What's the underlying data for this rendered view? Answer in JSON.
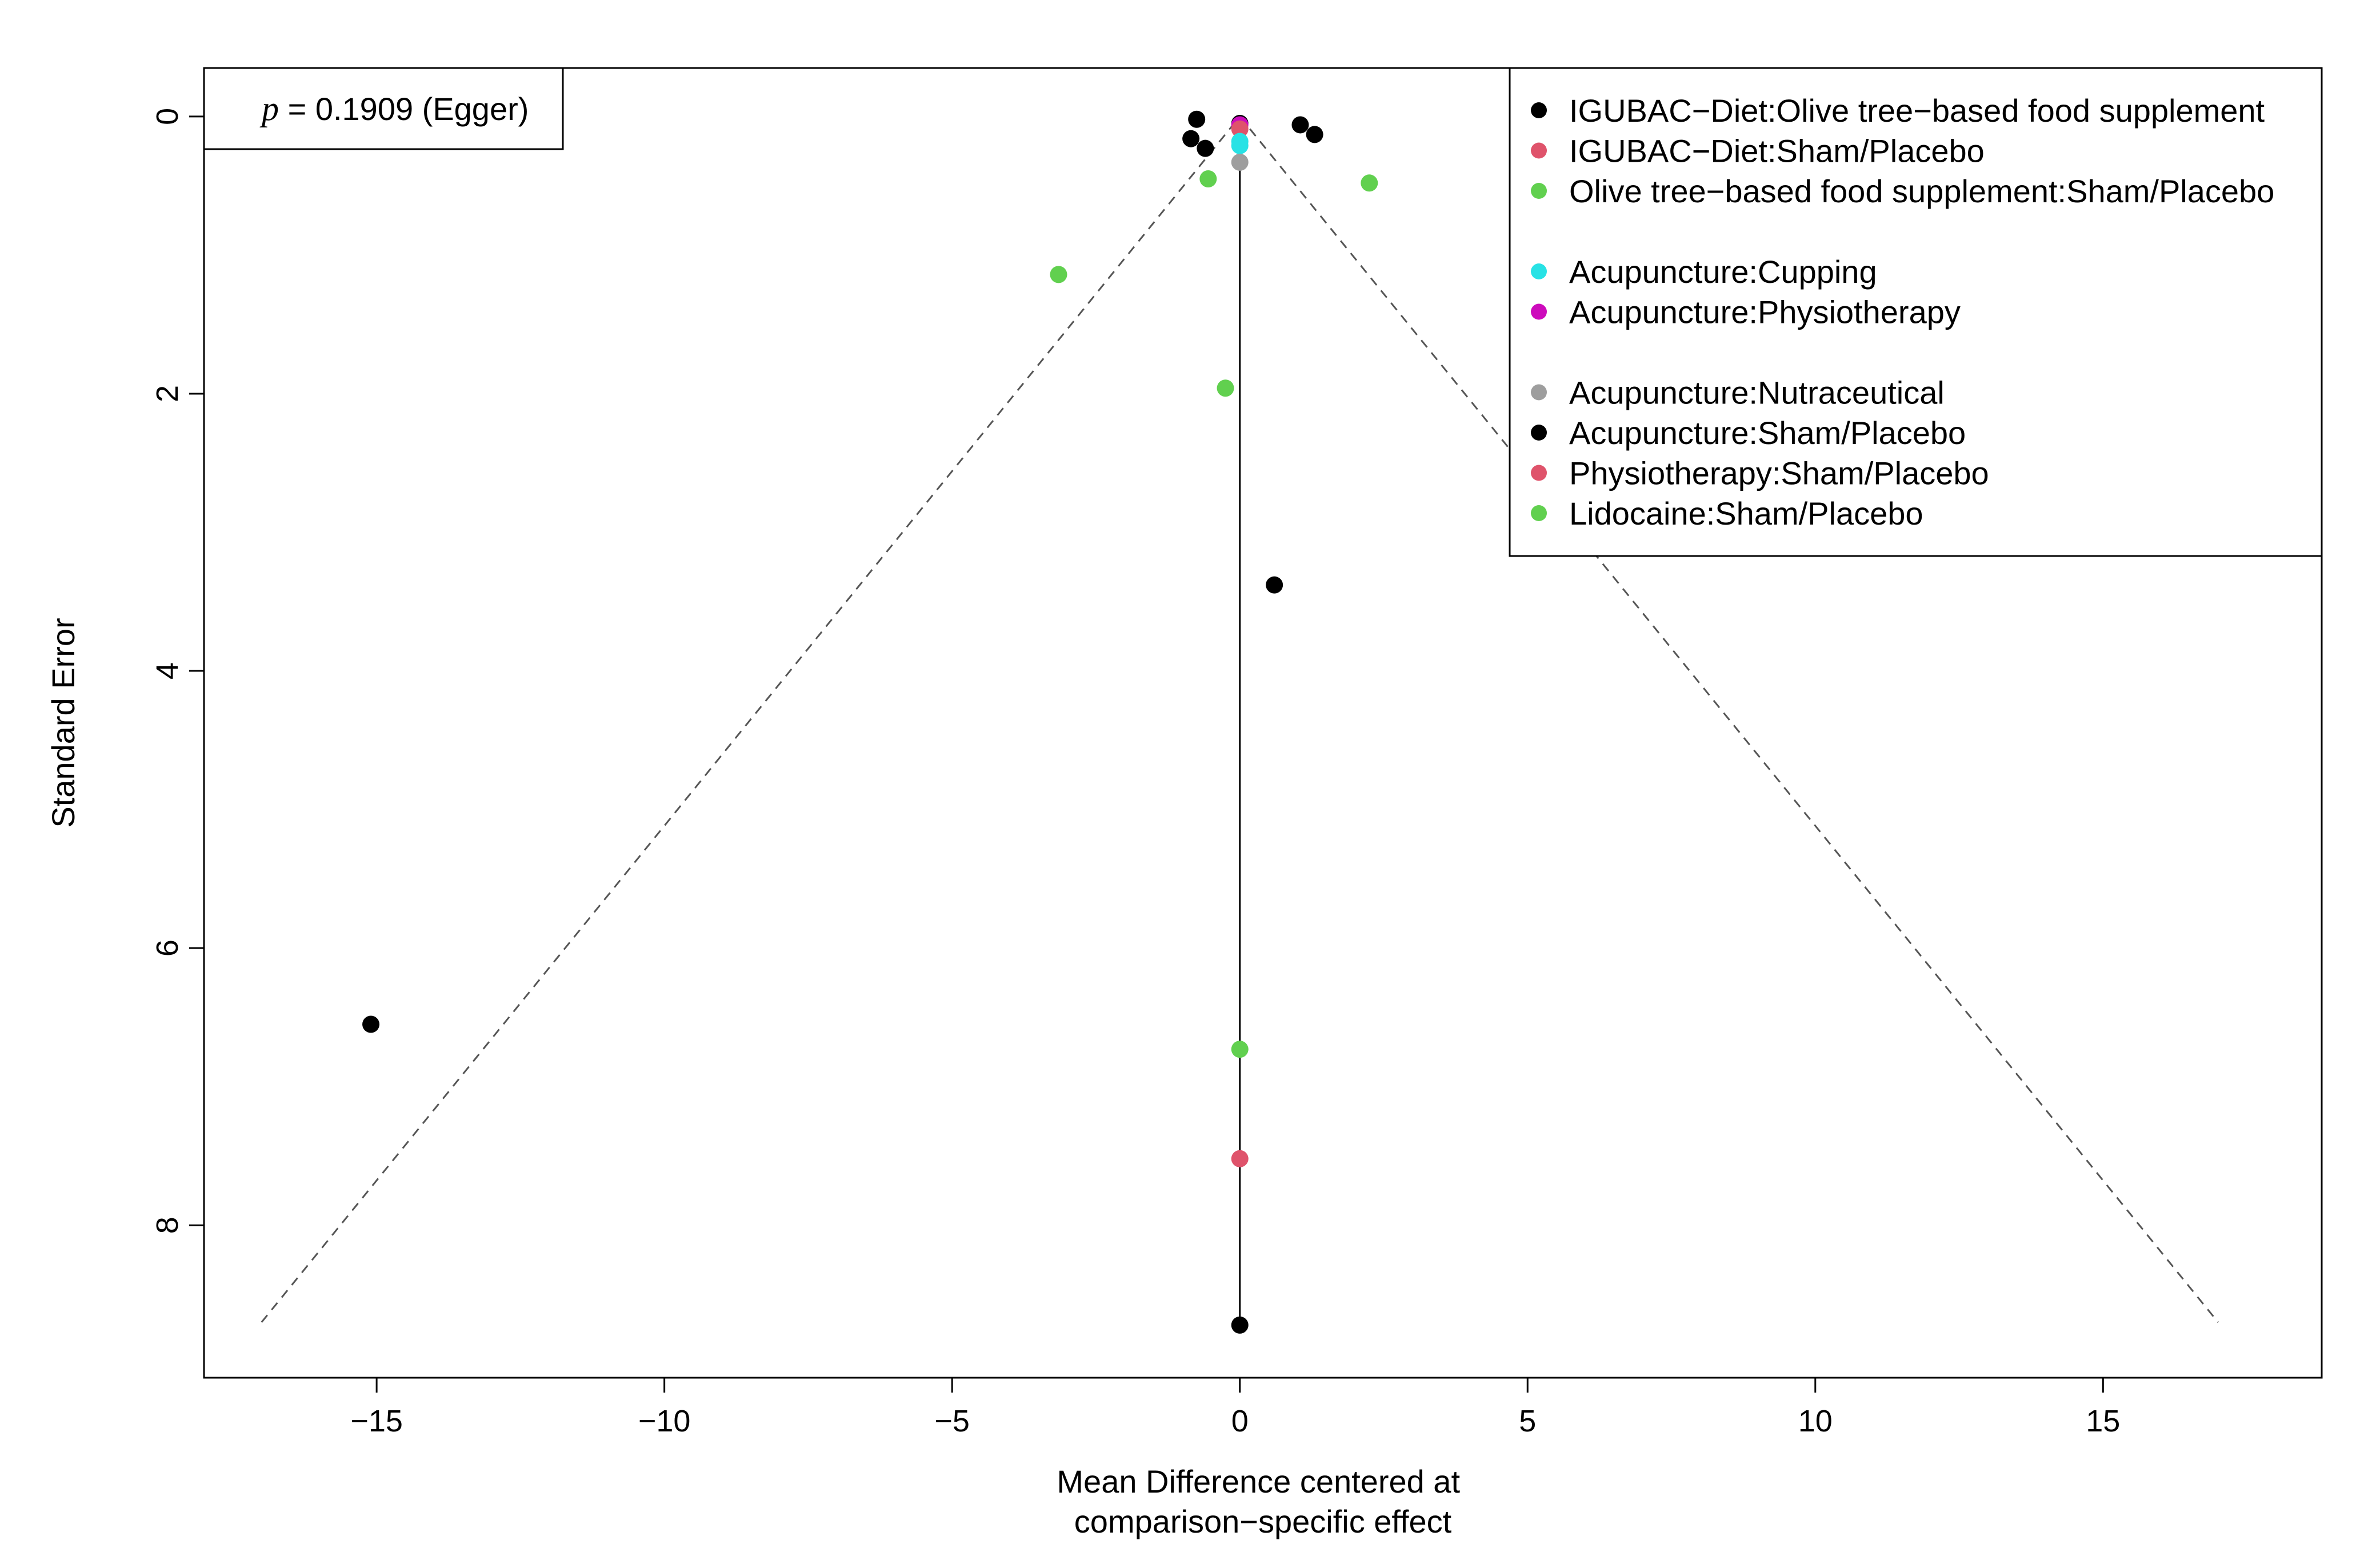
{
  "chart_data": {
    "type": "scatter",
    "xlabel_lines": [
      "Mean Difference centered at",
      "comparison−specific effect"
    ],
    "ylabel": "Standard Error",
    "xlim": [
      -18,
      18.8
    ],
    "ylim": [
      9.1,
      -0.35
    ],
    "y_reversed": true,
    "xticks": [
      -15,
      -10,
      -5,
      0,
      5,
      10,
      15
    ],
    "xtick_labels": [
      "−15",
      "−10",
      "−5",
      "0",
      "5",
      "10",
      "15"
    ],
    "yticks": [
      0,
      2,
      4,
      6,
      8
    ],
    "ytick_labels": [
      "0",
      "2",
      "4",
      "6",
      "8"
    ],
    "funnel": {
      "center": 0,
      "top_se": 0,
      "bottom_se": 8.7,
      "left_x": -17,
      "right_x": 17
    },
    "egger": {
      "p_symbol": "p",
      "text": " = 0.1909 (Egger)"
    },
    "legend": {
      "position": "top-right",
      "groups": [
        [
          {
            "label": "IGUBAC−Diet:Olive tree−based food supplement",
            "color": "#000000"
          },
          {
            "label": "IGUBAC−Diet:Sham/Placebo",
            "color": "#DF536B"
          },
          {
            "label": "Olive tree−based food supplement:Sham/Placebo",
            "color": "#61D04F"
          }
        ],
        [
          {
            "label": "Acupuncture:Cupping",
            "color": "#28E2E5"
          },
          {
            "label": "Acupuncture:Physiotherapy",
            "color": "#CD0BBC"
          }
        ],
        [
          {
            "label": "Acupuncture:Nutraceutical",
            "color": "#9E9E9E"
          },
          {
            "label": "Acupuncture:Sham/Placebo",
            "color": "#000000"
          },
          {
            "label": "Physiotherapy:Sham/Placebo",
            "color": "#DF536B"
          },
          {
            "label": "Lidocaine:Sham/Placebo",
            "color": "#61D04F"
          }
        ]
      ]
    },
    "points": [
      {
        "x": -0.75,
        "y": 0.02,
        "color": "#000000"
      },
      {
        "x": -0.85,
        "y": 0.16,
        "color": "#000000"
      },
      {
        "x": -0.6,
        "y": 0.23,
        "color": "#000000"
      },
      {
        "x": 1.05,
        "y": 0.06,
        "color": "#000000"
      },
      {
        "x": 1.3,
        "y": 0.13,
        "color": "#000000"
      },
      {
        "x": 0.0,
        "y": 0.05,
        "color": "#000000"
      },
      {
        "x": 0.0,
        "y": 0.06,
        "color": "#CD0BBC"
      },
      {
        "x": 0.0,
        "y": 0.09,
        "color": "#DF536B"
      },
      {
        "x": 0.0,
        "y": 0.18,
        "color": "#28E2E5"
      },
      {
        "x": 0.0,
        "y": 0.21,
        "color": "#28E2E5"
      },
      {
        "x": 0.0,
        "y": 0.33,
        "color": "#9E9E9E"
      },
      {
        "x": -0.55,
        "y": 0.45,
        "color": "#61D04F"
      },
      {
        "x": 2.25,
        "y": 0.48,
        "color": "#61D04F"
      },
      {
        "x": -3.15,
        "y": 1.14,
        "color": "#61D04F"
      },
      {
        "x": -0.25,
        "y": 1.96,
        "color": "#61D04F"
      },
      {
        "x": 0.6,
        "y": 3.38,
        "color": "#000000"
      },
      {
        "x": -15.1,
        "y": 6.55,
        "color": "#000000"
      },
      {
        "x": 0.0,
        "y": 6.73,
        "color": "#61D04F"
      },
      {
        "x": 0.0,
        "y": 7.52,
        "color": "#DF536B"
      },
      {
        "x": 0.0,
        "y": 8.72,
        "color": "#000000"
      }
    ]
  }
}
